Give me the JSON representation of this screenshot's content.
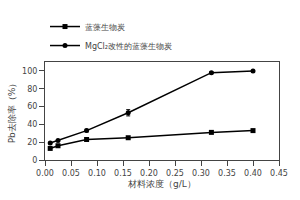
{
  "chart_data": {
    "type": "line",
    "xlabel": "材料浓度（g/L）",
    "ylabel": "Pb去除率（%）",
    "x": [
      0.01,
      0.025,
      0.08,
      0.16,
      0.32,
      0.4
    ],
    "series": [
      {
        "name": "蓝藻生物炭",
        "color": "#000000",
        "marker": "square",
        "line_style": "solid",
        "values": [
          13,
          16,
          23,
          25,
          31,
          33
        ]
      },
      {
        "name": "MgCl₂改性的蓝藻生物炭",
        "color": "#000000",
        "marker": "circle",
        "line_style": "solid",
        "values": [
          19,
          22,
          33,
          53,
          98,
          100
        ],
        "errors": [
          0.0,
          0.0,
          1.5,
          3.5,
          1.0,
          0.0
        ]
      }
    ],
    "xlim": [
      0.0,
      0.45
    ],
    "xticks": [
      {
        "value": 0.0,
        "label": "0.00"
      },
      0.05,
      {
        "value": 0.1,
        "label": "0.10"
      },
      0.15,
      {
        "value": 0.2,
        "label": "0.20"
      },
      0.25,
      {
        "value": 0.3,
        "label": "0.30"
      },
      0.35,
      {
        "value": 0.4,
        "label": "0.40"
      },
      0.45
    ],
    "ylim": [
      0,
      110
    ],
    "yticks": [
      0,
      20,
      40,
      60,
      80,
      100
    ],
    "grid": false,
    "legend": "upper left"
  }
}
